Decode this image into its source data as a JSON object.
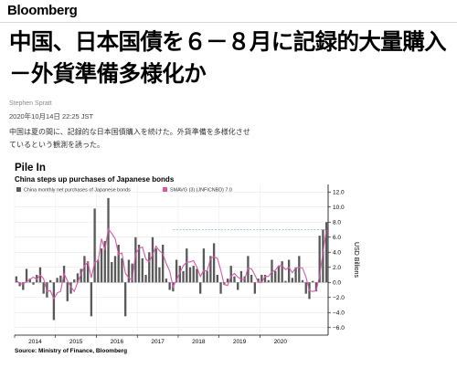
{
  "header": {
    "brand": "Bloomberg"
  },
  "article": {
    "headline": "中国、日本国債を６－８月に記録的大量購入－外貨準備多様化か",
    "author": "Stephen Spratt",
    "date": "2020年10月14日 22:25 JST",
    "body": "中国は夏の間に、記録的な日本国債購入を続けた。外貨準備を多様化させているという観測を誘った。"
  },
  "chart_data": {
    "type": "bar",
    "title": "Pile In",
    "subtitle": "China steps up purchases of Japanese bonds",
    "legend": [
      {
        "label": "China monthly net purchases of Japanese bonds",
        "color": "#595959"
      },
      {
        "label": "SMAVG (3) (JNFICNBD) 7.0",
        "color": "#d65aa8"
      }
    ],
    "ylabel": "USD Billions",
    "ylim": [
      -7,
      13
    ],
    "yticks": [
      12.0,
      10.0,
      8.0,
      6.0,
      4.0,
      2.0,
      0.0,
      -2.0,
      -4.0,
      -6.0
    ],
    "xlabels": [
      "2014",
      "2015",
      "2016",
      "2017",
      "2018",
      "2019",
      "2020"
    ],
    "reference_line": 7.0,
    "bar_color": "#595959",
    "line_color": "#d65aa8",
    "source": "Source: Ministry of Finance, Bloomberg",
    "values": [
      0.8,
      -0.5,
      -1.0,
      1.8,
      0.5,
      -0.3,
      1.0,
      2.0,
      -1.5,
      -2.0,
      0.3,
      -5.0,
      0.6,
      0.9,
      2.2,
      -2.5,
      -1.5,
      0.4,
      1.2,
      1.8,
      3.5,
      2.8,
      -4.5,
      9.8,
      3.0,
      4.5,
      5.5,
      11.2,
      2.7,
      3.5,
      5.0,
      3.2,
      -4.5,
      3.0,
      2.5,
      6.0,
      5.0,
      3.2,
      1.0,
      4.0,
      6.0,
      4.5,
      2.0,
      5.0,
      0.5,
      -1.0,
      -1.2,
      3.0,
      2.2,
      1.5,
      4.5,
      2.0,
      2.2,
      1.8,
      -1.5,
      4.5,
      1.5,
      3.5,
      5.2,
      1.0,
      -1.5,
      -0.3,
      0.5,
      2.2,
      0.8,
      -1.0,
      1.5,
      0.8,
      3.5,
      1.0,
      -1.5,
      0.5,
      1.0,
      1.0,
      0.3,
      3.0,
      1.5,
      2.2,
      2.8,
      0.2,
      3.0,
      0.6,
      2.0,
      3.5,
      0.3,
      -1.5,
      -2.2,
      0.2,
      -1.2,
      6.2,
      7.0,
      8.0
    ],
    "smavg": [
      0.3,
      -0.2,
      -0.2,
      0.1,
      0.4,
      0.7,
      0.4,
      1.0,
      0.5,
      -1.2,
      -1.1,
      -2.2,
      -1.4,
      -1.2,
      1.2,
      0.2,
      -0.6,
      -1.2,
      0.0,
      1.1,
      2.2,
      2.7,
      0.6,
      2.7,
      2.8,
      5.8,
      4.3,
      7.1,
      6.5,
      5.8,
      3.7,
      3.9,
      1.2,
      0.6,
      0.3,
      3.8,
      4.5,
      4.7,
      3.1,
      2.7,
      3.7,
      4.8,
      4.2,
      3.8,
      2.5,
      1.5,
      -0.6,
      0.3,
      1.3,
      2.2,
      2.7,
      2.7,
      2.9,
      2.0,
      0.8,
      1.6,
      1.5,
      3.2,
      3.4,
      3.2,
      1.6,
      -0.3,
      -0.4,
      0.8,
      1.2,
      0.7,
      0.4,
      0.4,
      1.9,
      1.8,
      1.0,
      0.0,
      0.0,
      0.8,
      0.8,
      1.4,
      1.6,
      2.2,
      2.2,
      1.7,
      2.0,
      1.3,
      1.9,
      2.0,
      1.9,
      0.7,
      -1.1,
      -1.2,
      -1.1,
      0.9,
      4.0,
      7.0
    ]
  }
}
